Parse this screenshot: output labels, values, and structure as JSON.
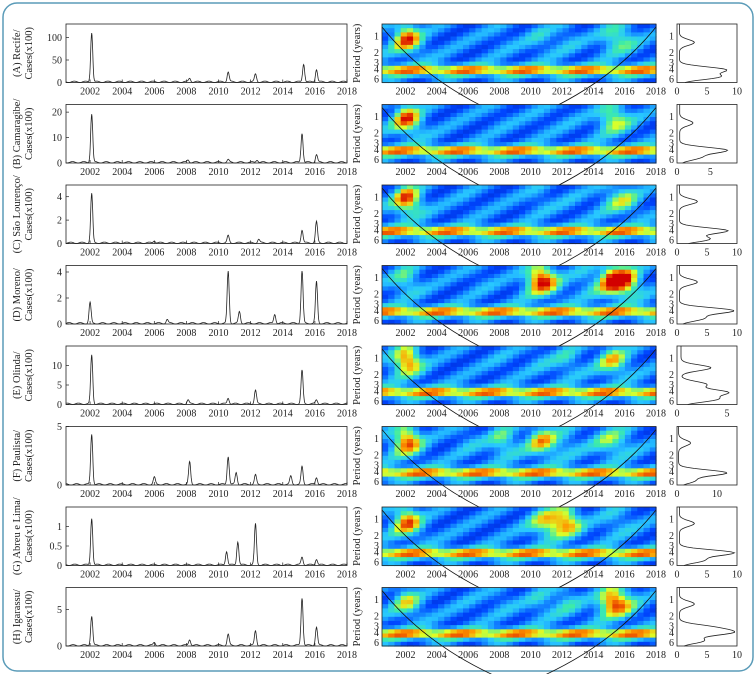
{
  "figure": {
    "border_color": "#5a9bb8",
    "x_ticks": [
      "2002",
      "2004",
      "2006",
      "2008",
      "2010",
      "2012",
      "2014",
      "2016",
      "2018"
    ],
    "wavelet_ylabel": "Period (years)",
    "period_ticks": [
      "1",
      "2",
      "3",
      "4",
      "6"
    ]
  },
  "chart_data": [
    {
      "type": "line",
      "panel": "A",
      "ylabel1": "(A) Recife/",
      "ylabel2": "Cases(x100)",
      "ylim": [
        0,
        130
      ],
      "yticks": [
        0,
        50,
        100
      ],
      "xlim": [
        2000.5,
        2018
      ],
      "peaks": [
        [
          2002.1,
          110
        ],
        [
          2008.2,
          8
        ],
        [
          2010.6,
          22
        ],
        [
          2012.3,
          17
        ],
        [
          2015.3,
          40
        ],
        [
          2016.1,
          28
        ]
      ],
      "power_ticks": [
        "0",
        "5",
        "10"
      ],
      "power_max": 10,
      "power_peaks": [
        [
          1.3,
          2.5
        ],
        [
          4.1,
          7.5
        ],
        [
          5.5,
          6.5
        ]
      ]
    },
    {
      "type": "line",
      "panel": "B",
      "ylabel1": "(B) Camaragibe/",
      "ylabel2": "Cases(x100)",
      "ylim": [
        0,
        23
      ],
      "yticks": [
        0,
        10,
        20
      ],
      "xlim": [
        2000.5,
        2018
      ],
      "peaks": [
        [
          2002.1,
          19
        ],
        [
          2008.1,
          1
        ],
        [
          2010.6,
          1
        ],
        [
          2012.4,
          1
        ],
        [
          2015.2,
          11.5
        ],
        [
          2016.1,
          3
        ]
      ],
      "power_ticks": [
        "0",
        "5"
      ],
      "power_max": 9,
      "power_peaks": [
        [
          1.3,
          2
        ],
        [
          4.1,
          7
        ],
        [
          5.5,
          3
        ]
      ]
    },
    {
      "type": "line",
      "panel": "C",
      "ylabel1": "(C) São Lourenço/",
      "ylabel2": "Cases(x100)",
      "ylim": [
        0,
        5
      ],
      "yticks": [
        0,
        2,
        4
      ],
      "xlim": [
        2000.5,
        2018
      ],
      "peaks": [
        [
          2002.1,
          4.2
        ],
        [
          2006.0,
          0.2
        ],
        [
          2010.6,
          0.6
        ],
        [
          2012.5,
          0.3
        ],
        [
          2015.2,
          1.1
        ],
        [
          2016.1,
          1.8
        ]
      ],
      "power_ticks": [
        "0",
        "5",
        "10"
      ],
      "power_max": 10,
      "power_peaks": [
        [
          1.2,
          3
        ],
        [
          4.1,
          8
        ],
        [
          5.8,
          5
        ]
      ]
    },
    {
      "type": "line",
      "panel": "D",
      "ylabel1": "(D) Moreno/",
      "ylabel2": "Cases(x100)",
      "ylim": [
        0,
        4.5
      ],
      "yticks": [
        0,
        2,
        4
      ],
      "xlim": [
        2000.5,
        2018
      ],
      "peaks": [
        [
          2002.0,
          1.6
        ],
        [
          2006.8,
          0.3
        ],
        [
          2010.6,
          4.0
        ],
        [
          2011.3,
          0.9
        ],
        [
          2013.5,
          0.7
        ],
        [
          2015.2,
          4.0
        ],
        [
          2016.1,
          3.2
        ]
      ],
      "power_ticks": [
        "0",
        "5",
        "10"
      ],
      "power_max": 10,
      "power_peaks": [
        [
          1.2,
          3
        ],
        [
          4.0,
          9
        ],
        [
          5.5,
          4
        ]
      ]
    },
    {
      "type": "line",
      "panel": "E",
      "ylabel1": "(E) Olinda/",
      "ylabel2": "Cases(x100)",
      "ylim": [
        0,
        15
      ],
      "yticks": [
        0,
        5,
        10
      ],
      "xlim": [
        2000.5,
        2018
      ],
      "peaks": [
        [
          2002.1,
          12.5
        ],
        [
          2008.1,
          1
        ],
        [
          2010.6,
          1.5
        ],
        [
          2012.3,
          3.5
        ],
        [
          2015.2,
          8.5
        ],
        [
          2016.1,
          1
        ]
      ],
      "power_ticks": [
        "0",
        "5"
      ],
      "power_max": 6,
      "power_peaks": [
        [
          1.5,
          3
        ],
        [
          3.0,
          2.5
        ],
        [
          4.2,
          4.5
        ],
        [
          5.6,
          3.5
        ]
      ]
    },
    {
      "type": "line",
      "panel": "F",
      "ylabel1": "(F) Paulista/",
      "ylabel2": "Cases(x100)",
      "ylim": [
        0,
        5
      ],
      "yticks": [
        0,
        5
      ],
      "xlim": [
        2000.5,
        2018
      ],
      "peaks": [
        [
          2002.1,
          4.3
        ],
        [
          2006.0,
          0.6
        ],
        [
          2008.2,
          1.9
        ],
        [
          2010.6,
          2.4
        ],
        [
          2011.1,
          1.0
        ],
        [
          2012.3,
          0.8
        ],
        [
          2014.5,
          0.7
        ],
        [
          2015.2,
          1.5
        ],
        [
          2016.1,
          0.6
        ]
      ],
      "power_ticks": [
        "0",
        "10"
      ],
      "power_max": 15,
      "power_peaks": [
        [
          1.2,
          3
        ],
        [
          4.2,
          12
        ],
        [
          5.8,
          4
        ]
      ]
    },
    {
      "type": "line",
      "panel": "G",
      "ylabel1": "(G) Abreu e Lima/",
      "ylabel2": "Cases(x100)",
      "ylim": [
        0,
        1.5
      ],
      "yticks": [
        0,
        0.5,
        1
      ],
      "xlim": [
        2000.5,
        2018
      ],
      "peaks": [
        [
          2002.1,
          1.2
        ],
        [
          2010.5,
          0.35
        ],
        [
          2011.2,
          0.6
        ],
        [
          2012.3,
          1.05
        ],
        [
          2015.2,
          0.2
        ],
        [
          2016.1,
          0.15
        ]
      ],
      "power_ticks": [
        "0",
        "5",
        "10"
      ],
      "power_max": 10,
      "power_peaks": [
        [
          1.2,
          2.5
        ],
        [
          4.1,
          9
        ],
        [
          5.6,
          4
        ]
      ]
    },
    {
      "type": "line",
      "panel": "H",
      "ylabel1": "(H) Igarassu/",
      "ylabel2": "Cases(x100)",
      "ylim": [
        0,
        8
      ],
      "yticks": [
        0,
        5
      ],
      "xlim": [
        2000.5,
        2018
      ],
      "peaks": [
        [
          2002.1,
          4
        ],
        [
          2006.0,
          0.4
        ],
        [
          2008.2,
          0.8
        ],
        [
          2010.6,
          1.5
        ],
        [
          2012.3,
          2
        ],
        [
          2015.2,
          6.5
        ],
        [
          2016.1,
          2.5
        ]
      ],
      "power_ticks": [
        "0",
        "5",
        "10"
      ],
      "power_max": 10,
      "power_peaks": [
        [
          1.2,
          2.5
        ],
        [
          3.2,
          5
        ],
        [
          4.0,
          8
        ],
        [
          5.6,
          4
        ]
      ]
    }
  ]
}
